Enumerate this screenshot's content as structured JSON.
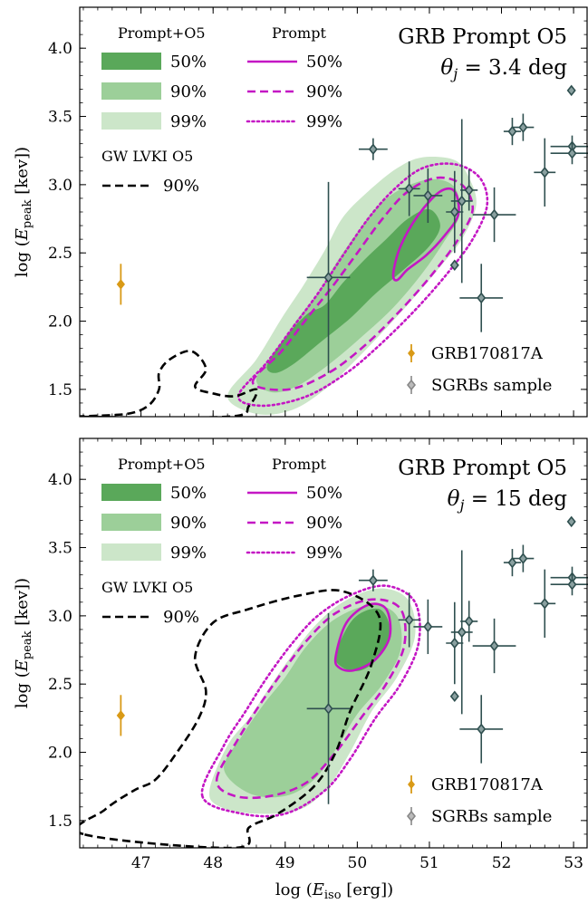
{
  "colors": {
    "fill_50": "#5aa85a",
    "fill_90": "#9ccf99",
    "fill_99": "#cce6c9",
    "prompt": "#c417c4",
    "gw": "#000000",
    "sgrb": "#2f4f4f",
    "sgrb_face": "#8aa0a0",
    "grb170817a": "#d99a16"
  },
  "chart_data": [
    {
      "type": "scatter",
      "title": "GRB Prompt O5",
      "subtitle": "θj = 3.4 deg",
      "xlabel": "log (Eiso [erg])",
      "ylabel": "log (Epeak [kev])",
      "xlim": [
        46.15,
        53.2
      ],
      "ylim": [
        1.3,
        4.3
      ],
      "grid": false,
      "x_ticks": [
        "47",
        "48",
        "49",
        "50",
        "51",
        "52",
        "53"
      ],
      "y_ticks": [
        "1.5",
        "2.0",
        "2.5",
        "3.0",
        "3.5",
        "4.0"
      ],
      "legend": {
        "col1_title": "Prompt+O5",
        "col1_entries": [
          "50%",
          "90%",
          "99%"
        ],
        "col2_title": "Prompt",
        "col2_entries": [
          "50%",
          "90%",
          "99%"
        ],
        "col3_title": "GW LVKI O5",
        "col3_entries": [
          "90%"
        ],
        "points_legend": [
          "GRB170817A",
          "SGRBs sample"
        ],
        "location": "top-left / bottom-right"
      },
      "contours": {
        "prompt_o5_99": [
          [
            48.2,
            1.45
          ],
          [
            48.6,
            1.72
          ],
          [
            48.95,
            2.02
          ],
          [
            49.25,
            2.26
          ],
          [
            49.55,
            2.52
          ],
          [
            49.8,
            2.76
          ],
          [
            50.15,
            2.95
          ],
          [
            50.55,
            3.12
          ],
          [
            50.9,
            3.2
          ],
          [
            51.35,
            3.18
          ],
          [
            51.55,
            3.05
          ],
          [
            51.65,
            2.85
          ],
          [
            51.45,
            2.6
          ],
          [
            51.15,
            2.4
          ],
          [
            50.75,
            2.15
          ],
          [
            50.35,
            1.92
          ],
          [
            49.95,
            1.7
          ],
          [
            49.55,
            1.5
          ],
          [
            49.1,
            1.35
          ],
          [
            48.6,
            1.32
          ]
        ],
        "prompt_o5_90": [
          [
            48.6,
            1.58
          ],
          [
            48.9,
            1.8
          ],
          [
            49.15,
            2.0
          ],
          [
            49.45,
            2.2
          ],
          [
            49.7,
            2.42
          ],
          [
            50.0,
            2.65
          ],
          [
            50.3,
            2.85
          ],
          [
            50.65,
            2.98
          ],
          [
            51.05,
            3.04
          ],
          [
            51.35,
            2.98
          ],
          [
            51.42,
            2.78
          ],
          [
            51.2,
            2.58
          ],
          [
            50.9,
            2.35
          ],
          [
            50.5,
            2.1
          ],
          [
            50.05,
            1.88
          ],
          [
            49.6,
            1.68
          ],
          [
            49.15,
            1.52
          ],
          [
            48.8,
            1.48
          ]
        ],
        "prompt_o5_50": [
          [
            48.75,
            1.68
          ],
          [
            49.0,
            1.88
          ],
          [
            49.3,
            2.05
          ],
          [
            49.55,
            2.12
          ],
          [
            49.8,
            2.28
          ],
          [
            50.1,
            2.45
          ],
          [
            50.4,
            2.6
          ],
          [
            50.7,
            2.75
          ],
          [
            51.0,
            2.82
          ],
          [
            51.15,
            2.7
          ],
          [
            51.0,
            2.55
          ],
          [
            50.65,
            2.38
          ],
          [
            50.25,
            2.2
          ],
          [
            49.9,
            2.02
          ],
          [
            49.5,
            1.85
          ],
          [
            49.1,
            1.68
          ],
          [
            48.85,
            1.62
          ]
        ],
        "prompt_99": [
          [
            48.35,
            1.45
          ],
          [
            48.75,
            1.7
          ],
          [
            49.1,
            1.95
          ],
          [
            49.45,
            2.2
          ],
          [
            49.8,
            2.48
          ],
          [
            50.15,
            2.75
          ],
          [
            50.5,
            2.96
          ],
          [
            50.9,
            3.12
          ],
          [
            51.35,
            3.15
          ],
          [
            51.7,
            3.05
          ],
          [
            51.8,
            2.85
          ],
          [
            51.6,
            2.6
          ],
          [
            51.25,
            2.35
          ],
          [
            50.8,
            2.08
          ],
          [
            50.3,
            1.82
          ],
          [
            49.85,
            1.62
          ],
          [
            49.3,
            1.45
          ],
          [
            48.7,
            1.38
          ]
        ],
        "prompt_90": [
          [
            48.55,
            1.55
          ],
          [
            48.95,
            1.78
          ],
          [
            49.3,
            2.02
          ],
          [
            49.65,
            2.25
          ],
          [
            50.0,
            2.5
          ],
          [
            50.35,
            2.75
          ],
          [
            50.7,
            2.95
          ],
          [
            51.1,
            3.05
          ],
          [
            51.45,
            3.0
          ],
          [
            51.6,
            2.82
          ],
          [
            51.4,
            2.6
          ],
          [
            51.05,
            2.35
          ],
          [
            50.6,
            2.08
          ],
          [
            50.1,
            1.82
          ],
          [
            49.6,
            1.62
          ],
          [
            49.05,
            1.5
          ]
        ],
        "prompt_50": [
          [
            50.5,
            2.35
          ],
          [
            50.6,
            2.55
          ],
          [
            50.85,
            2.78
          ],
          [
            51.15,
            2.95
          ],
          [
            51.35,
            2.95
          ],
          [
            51.4,
            2.78
          ],
          [
            51.2,
            2.62
          ],
          [
            50.95,
            2.48
          ],
          [
            50.7,
            2.38
          ],
          [
            50.55,
            2.3
          ]
        ],
        "gw_90": [
          [
            46.2,
            1.3
          ],
          [
            46.8,
            1.32
          ],
          [
            47.1,
            1.38
          ],
          [
            47.25,
            1.5
          ],
          [
            47.25,
            1.62
          ],
          [
            47.4,
            1.72
          ],
          [
            47.7,
            1.78
          ],
          [
            47.9,
            1.65
          ],
          [
            47.75,
            1.52
          ],
          [
            48.0,
            1.47
          ],
          [
            48.3,
            1.45
          ],
          [
            48.6,
            1.5
          ],
          [
            48.5,
            1.38
          ],
          [
            48.2,
            1.3
          ]
        ]
      },
      "grb170817a": {
        "x": 46.72,
        "y": 2.27,
        "yerr": 0.15
      },
      "sgrbs": [
        {
          "x": 50.22,
          "y": 3.26,
          "xerr": 0.2,
          "yerr": 0.08
        },
        {
          "x": 50.72,
          "y": 2.97,
          "xerr": 0.15,
          "yerr": 0.2
        },
        {
          "x": 50.98,
          "y": 2.92,
          "xerr": 0.2,
          "yerr": 0.2
        },
        {
          "x": 51.35,
          "y": 2.8,
          "xerr": 0.12,
          "yerr": 0.3
        },
        {
          "x": 51.45,
          "y": 2.88,
          "xerr": 0.15,
          "yerr": 0.6
        },
        {
          "x": 51.55,
          "y": 2.96,
          "xerr": 0.12,
          "yerr": 0.15
        },
        {
          "x": 51.35,
          "y": 2.41,
          "xerr": 0,
          "yerr": 0
        },
        {
          "x": 51.9,
          "y": 2.78,
          "xerr": 0.3,
          "yerr": 0.2
        },
        {
          "x": 51.72,
          "y": 2.17,
          "xerr": 0.3,
          "yerr": 0.25
        },
        {
          "x": 52.15,
          "y": 3.39,
          "xerr": 0.12,
          "yerr": 0.1
        },
        {
          "x": 52.3,
          "y": 3.42,
          "xerr": 0.15,
          "yerr": 0.1
        },
        {
          "x": 52.6,
          "y": 3.09,
          "xerr": 0.15,
          "yerr": 0.25
        },
        {
          "x": 52.97,
          "y": 3.69,
          "xerr": 0,
          "yerr": 0
        },
        {
          "x": 52.98,
          "y": 3.28,
          "xerr": 0.3,
          "yerr": 0.08
        },
        {
          "x": 52.98,
          "y": 3.23,
          "xerr": 0.3,
          "yerr": 0.08
        },
        {
          "x": 49.6,
          "y": 2.32,
          "xerr": 0.3,
          "yerr": 0.7
        }
      ]
    },
    {
      "type": "scatter",
      "title": "GRB Prompt O5",
      "subtitle": "θj = 15 deg",
      "xlabel": "log (Eiso [erg])",
      "ylabel": "log (Epeak [kev])",
      "xlim": [
        46.15,
        53.2
      ],
      "ylim": [
        1.3,
        4.3
      ],
      "grid": false,
      "x_ticks": [
        "47",
        "48",
        "49",
        "50",
        "51",
        "52",
        "53"
      ],
      "y_ticks": [
        "1.5",
        "2.0",
        "2.5",
        "3.0",
        "3.5",
        "4.0"
      ],
      "legend": {
        "col1_title": "Prompt+O5",
        "col1_entries": [
          "50%",
          "90%",
          "99%"
        ],
        "col2_title": "Prompt",
        "col2_entries": [
          "50%",
          "90%",
          "99%"
        ],
        "col3_title": "GW LVKI O5",
        "col3_entries": [
          "90%"
        ],
        "points_legend": [
          "GRB170817A",
          "SGRBs sample"
        ],
        "location": "top-left / bottom-right"
      },
      "contours": {
        "prompt_o5_99": [
          [
            47.95,
            1.72
          ],
          [
            48.2,
            2.05
          ],
          [
            48.5,
            2.25
          ],
          [
            48.75,
            2.45
          ],
          [
            49.05,
            2.68
          ],
          [
            49.4,
            2.92
          ],
          [
            49.8,
            3.1
          ],
          [
            50.3,
            3.2
          ],
          [
            50.7,
            3.12
          ],
          [
            50.8,
            2.85
          ],
          [
            50.55,
            2.55
          ],
          [
            50.2,
            2.3
          ],
          [
            49.9,
            2.0
          ],
          [
            49.6,
            1.75
          ],
          [
            49.2,
            1.58
          ],
          [
            48.6,
            1.55
          ],
          [
            48.1,
            1.6
          ]
        ],
        "prompt_o5_90": [
          [
            48.15,
            1.88
          ],
          [
            48.4,
            2.12
          ],
          [
            48.7,
            2.35
          ],
          [
            49.0,
            2.55
          ],
          [
            49.3,
            2.78
          ],
          [
            49.7,
            2.98
          ],
          [
            50.2,
            3.08
          ],
          [
            50.55,
            3.0
          ],
          [
            50.6,
            2.75
          ],
          [
            50.35,
            2.5
          ],
          [
            50.0,
            2.28
          ],
          [
            49.7,
            2.02
          ],
          [
            49.4,
            1.8
          ],
          [
            49.0,
            1.68
          ],
          [
            48.5,
            1.7
          ]
        ],
        "prompt_o5_50": [
          [
            49.7,
            2.72
          ],
          [
            49.95,
            2.98
          ],
          [
            50.3,
            3.05
          ],
          [
            50.45,
            2.9
          ],
          [
            50.3,
            2.7
          ],
          [
            50.05,
            2.6
          ],
          [
            49.8,
            2.62
          ]
        ],
        "prompt_99": [
          [
            47.85,
            1.68
          ],
          [
            48.15,
            2.05
          ],
          [
            48.45,
            2.3
          ],
          [
            48.75,
            2.55
          ],
          [
            49.1,
            2.8
          ],
          [
            49.45,
            3.0
          ],
          [
            49.9,
            3.15
          ],
          [
            50.4,
            3.22
          ],
          [
            50.8,
            3.1
          ],
          [
            50.85,
            2.8
          ],
          [
            50.6,
            2.5
          ],
          [
            50.25,
            2.25
          ],
          [
            49.9,
            1.95
          ],
          [
            49.55,
            1.72
          ],
          [
            49.0,
            1.55
          ],
          [
            48.4,
            1.55
          ]
        ],
        "prompt_90": [
          [
            48.05,
            1.8
          ],
          [
            48.35,
            2.1
          ],
          [
            48.65,
            2.35
          ],
          [
            48.95,
            2.58
          ],
          [
            49.3,
            2.82
          ],
          [
            49.7,
            3.02
          ],
          [
            50.2,
            3.12
          ],
          [
            50.6,
            3.05
          ],
          [
            50.65,
            2.78
          ],
          [
            50.4,
            2.5
          ],
          [
            50.05,
            2.25
          ],
          [
            49.7,
            2.0
          ],
          [
            49.3,
            1.78
          ],
          [
            48.8,
            1.68
          ],
          [
            48.3,
            1.68
          ]
        ],
        "prompt_50": [
          [
            49.7,
            2.7
          ],
          [
            49.85,
            2.95
          ],
          [
            50.15,
            3.08
          ],
          [
            50.4,
            3.05
          ],
          [
            50.45,
            2.85
          ],
          [
            50.25,
            2.68
          ],
          [
            49.95,
            2.6
          ],
          [
            49.75,
            2.62
          ]
        ],
        "gw_90": [
          [
            46.2,
            1.4
          ],
          [
            46.5,
            1.58
          ],
          [
            46.9,
            1.72
          ],
          [
            47.2,
            1.8
          ],
          [
            47.5,
            2.0
          ],
          [
            47.8,
            2.25
          ],
          [
            47.9,
            2.45
          ],
          [
            47.75,
            2.7
          ],
          [
            48.0,
            2.95
          ],
          [
            48.5,
            3.05
          ],
          [
            49.2,
            3.15
          ],
          [
            49.8,
            3.18
          ],
          [
            50.3,
            3.0
          ],
          [
            50.2,
            2.65
          ],
          [
            49.9,
            2.3
          ],
          [
            49.7,
            2.0
          ],
          [
            49.4,
            1.75
          ],
          [
            48.9,
            1.55
          ],
          [
            48.5,
            1.45
          ],
          [
            48.3,
            1.3
          ]
        ]
      },
      "grb170817a": {
        "x": 46.72,
        "y": 2.27,
        "yerr": 0.15
      },
      "sgrbs": [
        {
          "x": 50.22,
          "y": 3.26,
          "xerr": 0.2,
          "yerr": 0.08
        },
        {
          "x": 50.72,
          "y": 2.97,
          "xerr": 0.15,
          "yerr": 0.2
        },
        {
          "x": 50.98,
          "y": 2.92,
          "xerr": 0.2,
          "yerr": 0.2
        },
        {
          "x": 51.35,
          "y": 2.8,
          "xerr": 0.12,
          "yerr": 0.3
        },
        {
          "x": 51.45,
          "y": 2.88,
          "xerr": 0.15,
          "yerr": 0.6
        },
        {
          "x": 51.55,
          "y": 2.96,
          "xerr": 0.12,
          "yerr": 0.15
        },
        {
          "x": 51.35,
          "y": 2.41,
          "xerr": 0,
          "yerr": 0
        },
        {
          "x": 51.9,
          "y": 2.78,
          "xerr": 0.3,
          "yerr": 0.2
        },
        {
          "x": 51.72,
          "y": 2.17,
          "xerr": 0.3,
          "yerr": 0.25
        },
        {
          "x": 52.15,
          "y": 3.39,
          "xerr": 0.12,
          "yerr": 0.1
        },
        {
          "x": 52.3,
          "y": 3.42,
          "xerr": 0.15,
          "yerr": 0.1
        },
        {
          "x": 52.6,
          "y": 3.09,
          "xerr": 0.15,
          "yerr": 0.25
        },
        {
          "x": 52.97,
          "y": 3.69,
          "xerr": 0,
          "yerr": 0
        },
        {
          "x": 52.98,
          "y": 3.28,
          "xerr": 0.3,
          "yerr": 0.08
        },
        {
          "x": 52.98,
          "y": 3.23,
          "xerr": 0.3,
          "yerr": 0.08
        },
        {
          "x": 49.6,
          "y": 2.32,
          "xerr": 0.3,
          "yerr": 0.7
        }
      ]
    }
  ]
}
